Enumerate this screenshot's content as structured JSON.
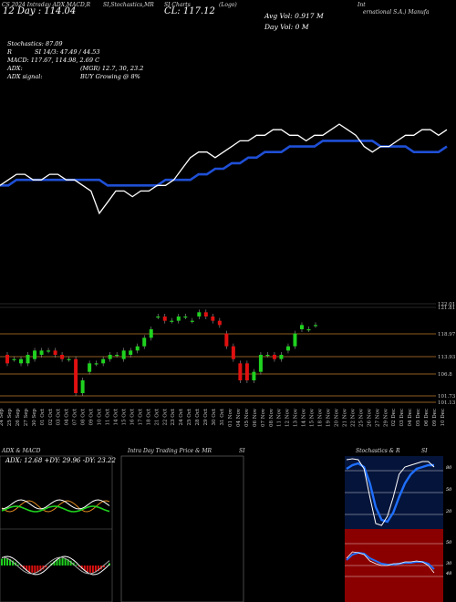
{
  "header": {
    "left_title": "CS 2024 Intraday ADX,MACD,R",
    "mid_title": "SI,Stochastics,MR",
    "mid2_title": "SI Charts",
    "logo_text": "(Logo)",
    "right_title": "ernational S.A.) Manufa",
    "right_title_prefix": "Int",
    "day_line": "12 Day : 114.04",
    "close": "CL: 117.12",
    "avg_vol": "Avg Vol: 0.917 M",
    "day_vol": "Day Vol: 0   M"
  },
  "indicators": {
    "stochastics": "Stochastics: 87.09",
    "rsi": "SI 14/3: 47.49 / 44.53",
    "rsi_prefix": "R",
    "macd": "MACD: 117.67,  114.98,  2.69 C",
    "adx": "ADX:",
    "adx_value": "(MGR) 12.7,  30,  23.2",
    "adx_signal_label": "ADX  signal:",
    "adx_signal": "BUY Growing @ 8%"
  },
  "price_axis": [
    "122.01",
    "121.81",
    "118.97",
    "113.93",
    "106.8",
    "101.73",
    "101.13"
  ],
  "dates": [
    "24 Sep",
    "25 Sep",
    "26 Sep",
    "27 Sep",
    "30 Sep",
    "01 Oct",
    "02 Oct",
    "03 Oct",
    "04 Oct",
    "07 Oct",
    "08 Oct",
    "09 Oct",
    "10 Oct",
    "11 Oct",
    "14 Oct",
    "15 Oct",
    "16 Oct",
    "17 Oct",
    "18 Oct",
    "21 Oct",
    "22 Oct",
    "23 Oct",
    "24 Oct",
    "25 Oct",
    "28 Oct",
    "29 Oct",
    "30 Oct",
    "31 Oct",
    "01 Nov",
    "04 Nov",
    "05 Nov",
    "06 Nov",
    "07 Nov",
    "08 Nov",
    "11 Nov",
    "12 Nov",
    "13 Nov",
    "14 Nov",
    "15 Nov",
    "18 Nov",
    "19 Nov",
    "20 Nov",
    "21 Nov",
    "22 Nov",
    "25 Nov",
    "26 Nov",
    "27 Nov",
    "29 Nov",
    "02 Dec",
    "03 Dec",
    "04 Dec",
    "05 Dec",
    "06 Dec",
    "09 Dec",
    "10 Dec"
  ],
  "panels": {
    "adx_macd_title": "ADX  & MACD",
    "adx_readout": "ADX: 12.68  +DY: 29.96  -DY: 23.22",
    "intraday_title": "Intra  Day Trading Price  & MR",
    "intraday_title_suffix": "SI",
    "stoch_title": "Stochastics & R",
    "stoch_title_suffix": "SI",
    "stoch_axis": [
      "100",
      "80",
      "50",
      "20",
      "0"
    ],
    "rsi_axis": [
      "100",
      "50",
      "30",
      "0"
    ],
    "rsi_value": "48"
  },
  "colors": {
    "bg": "#000000",
    "ma_line": "#1f4fd6",
    "price_line": "#ffffff",
    "candle_up": "#1fd21f",
    "candle_down": "#e01010",
    "level_line": "#c07a2a",
    "stoch_bg": "#05143a",
    "rsi_bg": "#8a0000"
  },
  "chart_data": {
    "type": "line",
    "series": [
      {
        "values": [
          112,
          113,
          114,
          114,
          113,
          113,
          114,
          114,
          113,
          113,
          112,
          111,
          107,
          109,
          111,
          111,
          110,
          111,
          111,
          112,
          112,
          113,
          115,
          117,
          118,
          118,
          117,
          118,
          119,
          120,
          120,
          121,
          121,
          122,
          122,
          121,
          121,
          120,
          121,
          121,
          122,
          123,
          122,
          121,
          119,
          118,
          119,
          119,
          120,
          121,
          121,
          122,
          122,
          121,
          122
        ]
      },
      {
        "values": [
          112,
          112,
          113,
          113,
          113,
          113,
          113,
          113,
          113,
          113,
          113,
          113,
          113,
          112,
          112,
          112,
          112,
          112,
          112,
          112,
          113,
          113,
          113,
          113,
          114,
          114,
          115,
          115,
          116,
          116,
          117,
          117,
          118,
          118,
          118,
          119,
          119,
          119,
          119,
          120,
          120,
          120,
          120,
          120,
          120,
          120,
          119,
          119,
          119,
          119,
          118,
          118,
          118,
          118,
          119
        ]
      }
    ],
    "candles": [
      {
        "o": 112,
        "c": 110
      },
      {
        "o": 111,
        "c": 111
      },
      {
        "o": 110,
        "c": 111
      },
      {
        "o": 110,
        "c": 112
      },
      {
        "o": 111,
        "c": 113
      },
      {
        "o": 112,
        "c": 113
      },
      {
        "o": 113,
        "c": 113
      },
      {
        "o": 113,
        "c": 112
      },
      {
        "o": 112,
        "c": 111
      },
      {
        "o": 111,
        "c": 111
      },
      {
        "o": 111,
        "c": 103
      },
      {
        "o": 103,
        "c": 106
      },
      {
        "o": 108,
        "c": 110
      },
      {
        "o": 110,
        "c": 110
      },
      {
        "o": 110,
        "c": 111
      },
      {
        "o": 111,
        "c": 112
      },
      {
        "o": 112,
        "c": 112
      },
      {
        "o": 111,
        "c": 113
      },
      {
        "o": 112,
        "c": 113
      },
      {
        "o": 113,
        "c": 114
      },
      {
        "o": 114,
        "c": 116
      },
      {
        "o": 116,
        "c": 118
      },
      {
        "o": 121,
        "c": 121
      },
      {
        "o": 121,
        "c": 120
      },
      {
        "o": 120,
        "c": 120
      },
      {
        "o": 120,
        "c": 121
      },
      {
        "o": 121,
        "c": 121
      },
      {
        "o": 120,
        "c": 120
      },
      {
        "o": 121,
        "c": 122
      },
      {
        "o": 122,
        "c": 121
      },
      {
        "o": 121,
        "c": 120
      },
      {
        "o": 120,
        "c": 119
      },
      {
        "o": 117,
        "c": 114
      },
      {
        "o": 114,
        "c": 111
      },
      {
        "o": 110,
        "c": 106
      },
      {
        "o": 110,
        "c": 106
      },
      {
        "o": 106,
        "c": 108
      },
      {
        "o": 108,
        "c": 112
      },
      {
        "o": 112,
        "c": 112
      },
      {
        "o": 112,
        "c": 111
      },
      {
        "o": 111,
        "c": 112
      },
      {
        "o": 113,
        "c": 114
      },
      {
        "o": 114,
        "c": 117
      },
      {
        "o": 118,
        "c": 119
      },
      {
        "o": 118,
        "c": 118
      },
      {
        "o": 119,
        "c": 119
      }
    ]
  }
}
